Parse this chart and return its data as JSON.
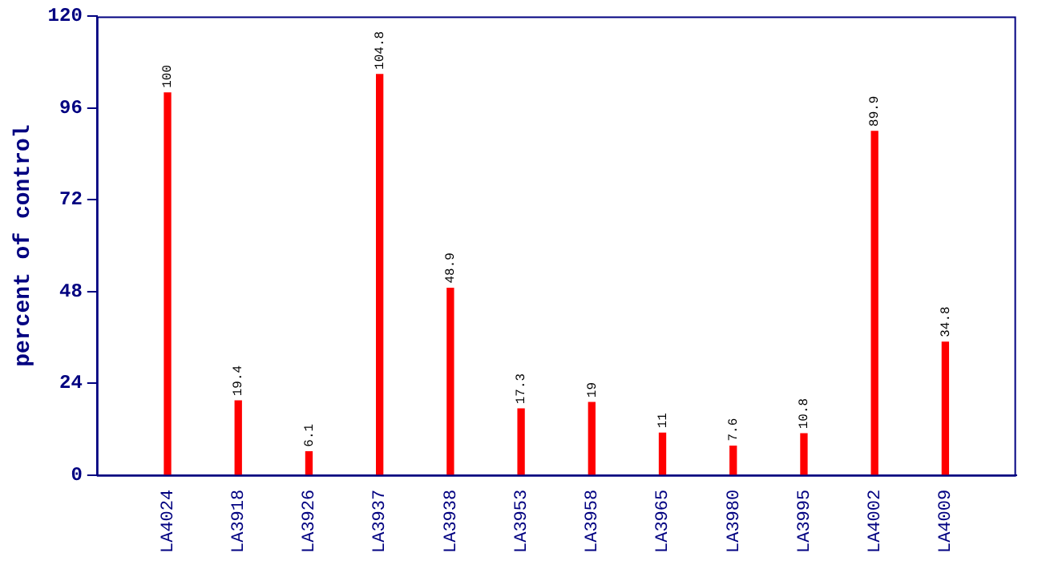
{
  "chart_data": {
    "type": "bar",
    "ylabel": "percent of control",
    "categories": [
      "LA4024",
      "LA3918",
      "LA3926",
      "LA3937",
      "LA3938",
      "LA3953",
      "LA3958",
      "LA3965",
      "LA3980",
      "LA3995",
      "LA4002",
      "LA4009"
    ],
    "values": [
      100,
      19.4,
      6.1,
      104.8,
      48.9,
      17.3,
      19,
      11,
      7.6,
      10.8,
      89.9,
      34.8
    ],
    "color": "#ff0000",
    "ylim": [
      0,
      120
    ],
    "yticks": [
      0,
      24,
      48,
      72,
      96,
      120
    ],
    "grid": false,
    "data_labels": true
  }
}
